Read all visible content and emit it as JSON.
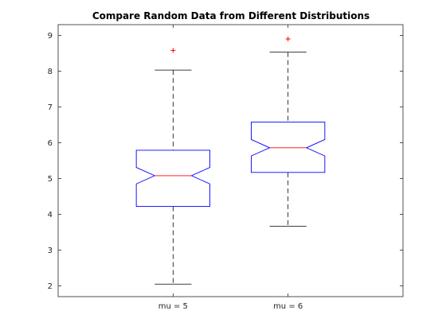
{
  "chart_data": {
    "type": "box",
    "title": "Compare Random Data from Different Distributions",
    "xlabel": "",
    "ylabel": "",
    "categories": [
      "mu = 5",
      "mu = 6"
    ],
    "ylim": [
      1.7,
      9.3
    ],
    "yticks": [
      2,
      3,
      4,
      5,
      6,
      7,
      8,
      9
    ],
    "notched": true,
    "grid": false,
    "boxes": [
      {
        "name": "mu = 5",
        "whisker_low": 2.05,
        "q1": 4.22,
        "median": 5.08,
        "q3": 5.79,
        "whisker_high": 8.03,
        "notch_low": 4.85,
        "notch_high": 5.31,
        "outliers": [
          8.58
        ]
      },
      {
        "name": "mu = 6",
        "whisker_low": 3.67,
        "q1": 5.17,
        "median": 5.86,
        "q3": 6.58,
        "whisker_high": 8.53,
        "notch_low": 5.63,
        "notch_high": 6.09,
        "outliers": [
          8.9
        ]
      }
    ],
    "colors": {
      "box": "#0000ff",
      "median": "#ff0000",
      "whisker": "#000000",
      "outlier": "#ff0000",
      "axes": "#262626"
    }
  }
}
